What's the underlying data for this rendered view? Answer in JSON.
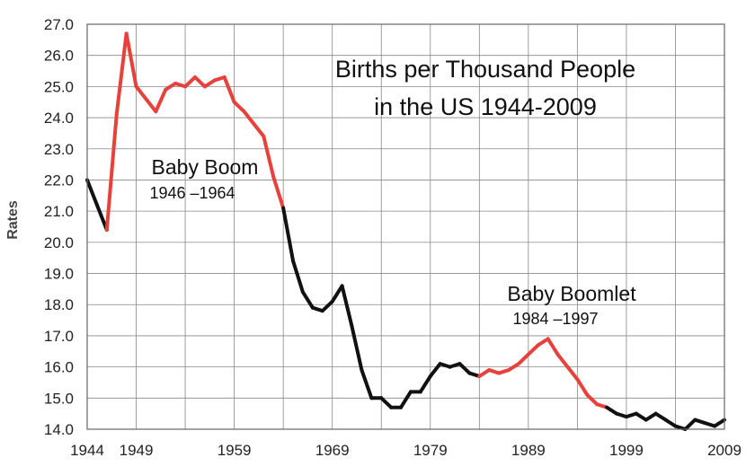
{
  "chart_data": {
    "type": "line",
    "title_lines": [
      "Births per Thousand People",
      "in the US 1944-2009"
    ],
    "xlabel": "",
    "ylabel": "Rates",
    "xlim": [
      1944,
      2009
    ],
    "ylim": [
      14.0,
      27.0
    ],
    "x_ticks": [
      1944,
      1949,
      1959,
      1969,
      1979,
      1989,
      1999,
      2009
    ],
    "x_tick_labels": [
      "1944",
      "1949",
      "1959",
      "1969",
      "1979",
      "1989",
      "1999",
      "2009"
    ],
    "y_ticks": [
      14,
      15,
      16,
      17,
      18,
      19,
      20,
      21,
      22,
      23,
      24,
      25,
      26,
      27
    ],
    "y_tick_labels": [
      "14.0",
      "15.0",
      "16.0",
      "17.0",
      "18.0",
      "19.0",
      "20.0",
      "21.0",
      "22.0",
      "23.0",
      "24.0",
      "25.0",
      "26.0",
      "27.0"
    ],
    "grid": true,
    "colors": {
      "highlight": "#e8403a",
      "base": "#111111",
      "grid": "#888888",
      "plot_bg": "#ffffff"
    },
    "series": [
      {
        "x": [
          1944,
          1945,
          1946,
          1947,
          1948,
          1949,
          1950,
          1951,
          1952,
          1953,
          1954,
          1955,
          1956,
          1957,
          1958,
          1959,
          1960,
          1961,
          1962,
          1963,
          1964,
          1965,
          1966,
          1967,
          1968,
          1969,
          1970,
          1971,
          1972,
          1973,
          1974,
          1975,
          1976,
          1977,
          1978,
          1979,
          1980,
          1981,
          1982,
          1983,
          1984,
          1985,
          1986,
          1987,
          1988,
          1989,
          1990,
          1991,
          1992,
          1993,
          1994,
          1995,
          1996,
          1997,
          1998,
          1999,
          2000,
          2001,
          2002,
          2003,
          2004,
          2005,
          2006,
          2007,
          2008,
          2009
        ],
        "y": [
          22.0,
          21.2,
          20.4,
          24.1,
          26.7,
          25.0,
          24.6,
          24.2,
          24.9,
          25.1,
          25.0,
          25.3,
          25.0,
          25.2,
          25.3,
          24.5,
          24.2,
          23.8,
          23.4,
          22.1,
          21.1,
          19.4,
          18.4,
          17.9,
          17.8,
          18.1,
          18.6,
          17.3,
          15.9,
          15.0,
          15.0,
          14.7,
          14.7,
          15.2,
          15.2,
          15.7,
          16.1,
          16.0,
          16.1,
          15.8,
          15.7,
          15.9,
          15.8,
          15.9,
          16.1,
          16.4,
          16.7,
          16.9,
          16.4,
          16.0,
          15.6,
          15.1,
          14.8,
          14.7,
          14.5,
          14.4,
          14.5,
          14.3,
          14.5,
          14.3,
          14.1,
          14.0,
          14.3,
          14.2,
          14.1,
          14.3
        ]
      }
    ],
    "highlight_ranges": [
      {
        "x": [
          1946,
          1964
        ],
        "label": "Baby Boom",
        "sublabel": "1946 –1964"
      },
      {
        "x": [
          1984,
          1997
        ],
        "label": "Baby Boomlet",
        "sublabel": "1984 –1997"
      }
    ]
  }
}
